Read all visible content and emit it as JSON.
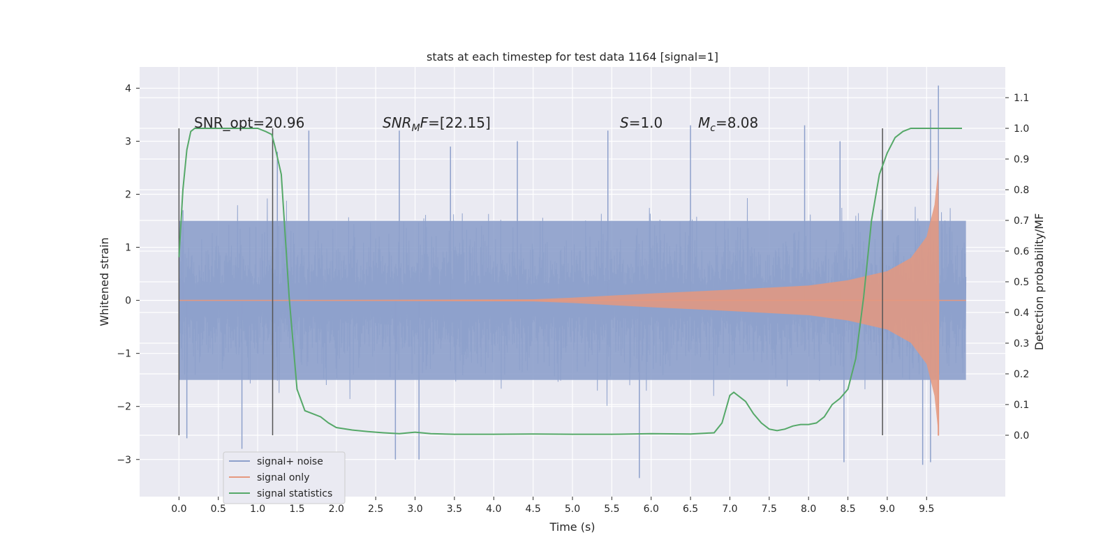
{
  "chart_data": {
    "type": "line",
    "title": "stats at each timestep for test data 1164 [signal=1]",
    "xlabel": "Time (s)",
    "ylabel": "Whitened strain",
    "ylabel_right": "Detection probability/MF",
    "xlim": [
      -0.5,
      10.5
    ],
    "ylim": [
      -3.7,
      4.4
    ],
    "ylim_right": [
      -0.2,
      1.2
    ],
    "x_ticks": [
      "0.0",
      "0.5",
      "1.0",
      "1.5",
      "2.0",
      "2.5",
      "3.0",
      "3.5",
      "4.0",
      "4.5",
      "5.0",
      "5.5",
      "6.0",
      "6.5",
      "7.0",
      "7.5",
      "8.0",
      "8.5",
      "9.0",
      "9.5"
    ],
    "y_ticks": [
      "−3",
      "−2",
      "−1",
      "0",
      "1",
      "2",
      "3",
      "4"
    ],
    "y_right_ticks": [
      "0.0",
      "0.1",
      "0.2",
      "0.3",
      "0.4",
      "0.5",
      "0.6",
      "0.7",
      "0.8",
      "0.9",
      "1.0",
      "1.1"
    ],
    "grid": true,
    "legend_position": "lower-left",
    "annotations": {
      "snr_opt": "SNR_opt=20.96",
      "snr_mf": "=[22.15]",
      "s_val": "=1.0",
      "mc_val": "=8.08"
    },
    "vertical_markers_x": [
      0.0,
      1.19,
      8.94
    ],
    "series": [
      {
        "name": "signal+ noise",
        "color": "#8da0cb",
        "x_range": [
          0.0,
          10.0
        ],
        "amplitude_band": [
          -1.5,
          1.5
        ],
        "peaks": [
          [
            0.05,
            1.7
          ],
          [
            1.25,
            2.8
          ],
          [
            1.65,
            3.2
          ],
          [
            2.8,
            3.2
          ],
          [
            3.45,
            2.9
          ],
          [
            4.3,
            3.0
          ],
          [
            5.45,
            3.2
          ],
          [
            6.5,
            3.3
          ],
          [
            7.95,
            3.3
          ],
          [
            8.4,
            3.0
          ],
          [
            9.55,
            3.6
          ],
          [
            9.65,
            4.05
          ]
        ],
        "troughs": [
          [
            0.1,
            -2.6
          ],
          [
            0.8,
            -2.8
          ],
          [
            2.75,
            -3.0
          ],
          [
            3.05,
            -3.0
          ],
          [
            5.85,
            -3.35
          ],
          [
            8.45,
            -3.05
          ],
          [
            9.45,
            -3.1
          ],
          [
            9.55,
            -3.05
          ]
        ]
      },
      {
        "name": "signal only",
        "color": "#e5987e",
        "envelope": [
          [
            0.0,
            0.0
          ],
          [
            4.5,
            0.02
          ],
          [
            5.0,
            0.05
          ],
          [
            6.0,
            0.13
          ],
          [
            7.0,
            0.2
          ],
          [
            8.0,
            0.28
          ],
          [
            8.5,
            0.38
          ],
          [
            9.0,
            0.55
          ],
          [
            9.3,
            0.8
          ],
          [
            9.5,
            1.2
          ],
          [
            9.6,
            1.8
          ],
          [
            9.65,
            2.5
          ],
          [
            9.66,
            0.0
          ],
          [
            10.0,
            0.0
          ]
        ],
        "end_spike": [
          9.65,
          -2.55
        ]
      },
      {
        "name": "signal statistics",
        "color": "#55a868",
        "axis": "right",
        "x": [
          0.0,
          0.05,
          0.1,
          0.15,
          0.2,
          0.3,
          0.5,
          0.7,
          0.9,
          1.0,
          1.1,
          1.18,
          1.22,
          1.3,
          1.4,
          1.5,
          1.6,
          1.7,
          1.8,
          1.9,
          2.0,
          2.2,
          2.4,
          2.6,
          2.8,
          3.0,
          3.2,
          3.5,
          4.0,
          4.5,
          5.0,
          5.5,
          6.0,
          6.5,
          6.8,
          6.9,
          7.0,
          7.05,
          7.1,
          7.2,
          7.3,
          7.4,
          7.5,
          7.6,
          7.7,
          7.8,
          7.9,
          8.0,
          8.1,
          8.2,
          8.3,
          8.4,
          8.5,
          8.6,
          8.7,
          8.8,
          8.9,
          9.0,
          9.1,
          9.2,
          9.3,
          9.5,
          9.7,
          9.95
        ],
        "y": [
          0.58,
          0.8,
          0.93,
          0.99,
          1.0,
          1.0,
          1.0,
          1.0,
          1.0,
          1.0,
          0.99,
          0.98,
          0.94,
          0.85,
          0.45,
          0.15,
          0.08,
          0.07,
          0.06,
          0.04,
          0.025,
          0.017,
          0.012,
          0.008,
          0.005,
          0.01,
          0.005,
          0.003,
          0.003,
          0.004,
          0.003,
          0.003,
          0.005,
          0.004,
          0.008,
          0.04,
          0.13,
          0.14,
          0.13,
          0.11,
          0.07,
          0.04,
          0.02,
          0.015,
          0.02,
          0.03,
          0.035,
          0.035,
          0.04,
          0.06,
          0.1,
          0.12,
          0.15,
          0.25,
          0.45,
          0.7,
          0.85,
          0.92,
          0.97,
          0.99,
          1.0,
          1.0,
          1.0,
          1.0
        ]
      }
    ]
  }
}
